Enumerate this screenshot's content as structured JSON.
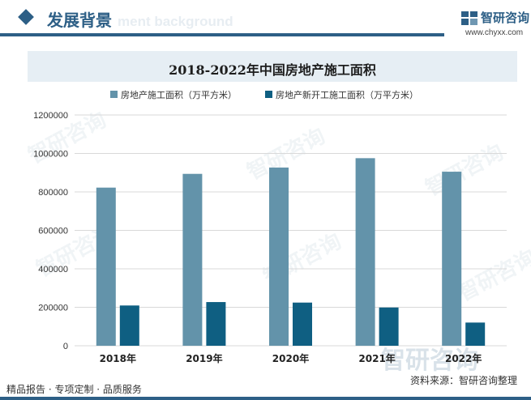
{
  "header": {
    "section_title": "发展背景",
    "section_title_ghost": "ment background",
    "brand_name": "智研咨询",
    "brand_url": "www.chyxx.com"
  },
  "chart_data": {
    "type": "bar",
    "title": "2018-2022年中国房地产施工面积",
    "categories": [
      "2018年",
      "2019年",
      "2020年",
      "2021年",
      "2022年"
    ],
    "series": [
      {
        "name": "房地产施工面积（万平方米）",
        "color": "#6393aa",
        "values": [
          822300,
          893821,
          926759,
          975387,
          904999
        ]
      },
      {
        "name": "房地产新开工施工面积（万平方米）",
        "color": "#0f5f82",
        "values": [
          209342,
          227154,
          224433,
          198895,
          120587
        ]
      }
    ],
    "yticks": [
      "0",
      "200000",
      "400000",
      "600000",
      "800000",
      "1000000",
      "1200000"
    ],
    "ylim": [
      0,
      1200000
    ],
    "grid": true,
    "legend_position": "top"
  },
  "watermark": {
    "text": "智研咨询"
  },
  "footer": {
    "tagline": "精品报告 · 专项定制 · 品质服务",
    "source": "资料来源：智研咨询整理"
  }
}
